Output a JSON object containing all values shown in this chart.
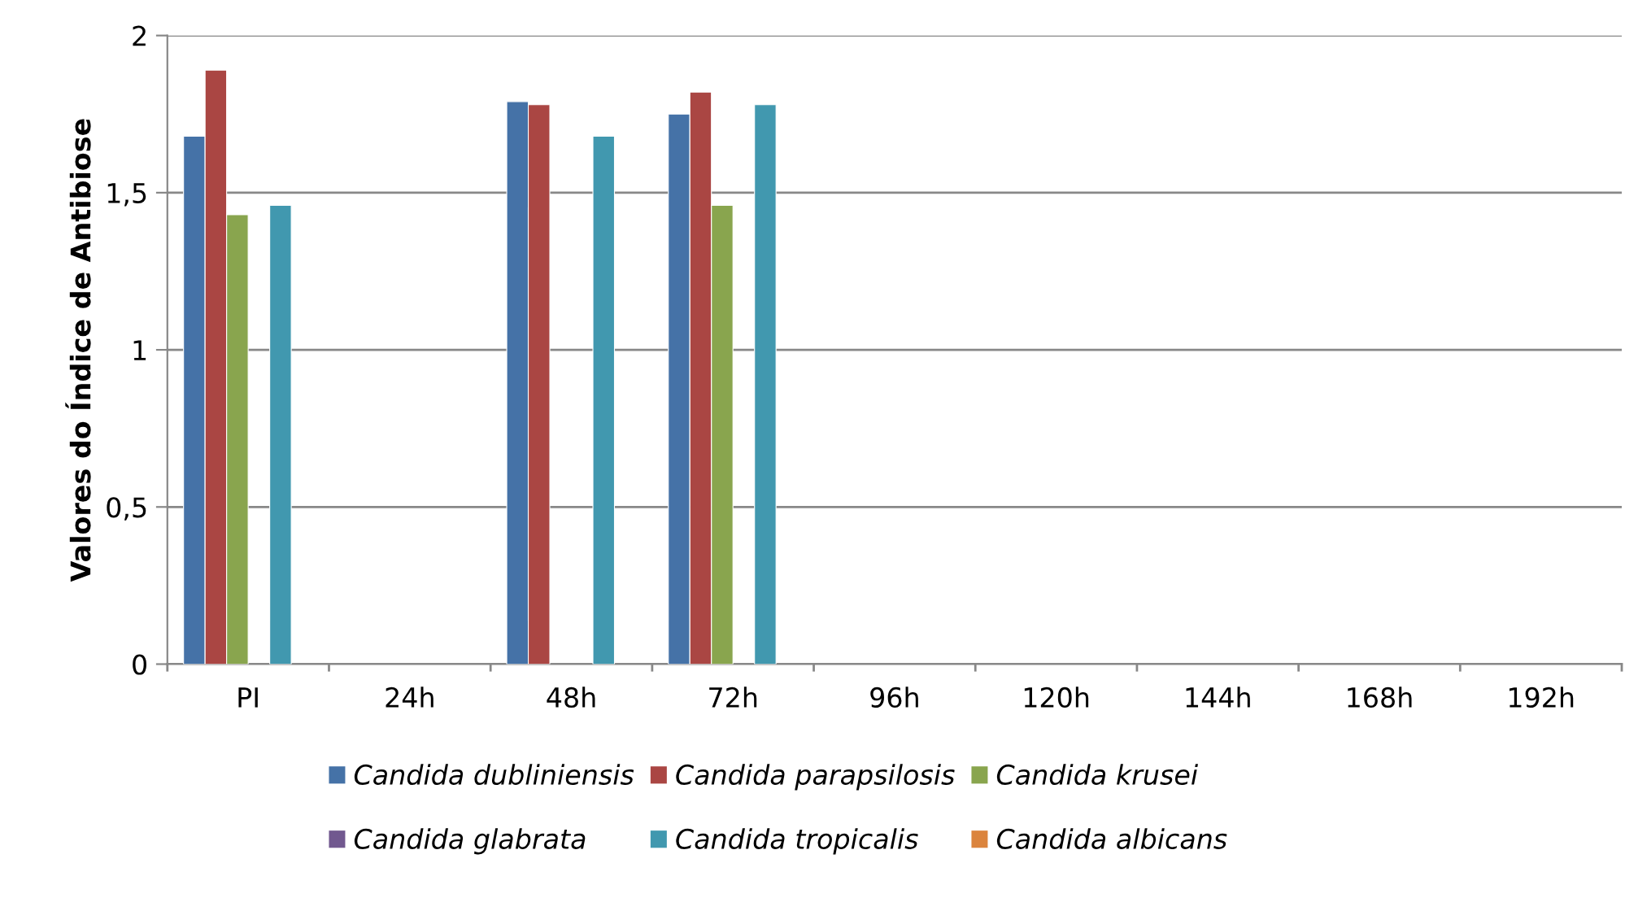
{
  "chart_data": {
    "type": "bar",
    "ylabel": "Valores do Índice de Antibiose",
    "categories": [
      "PI",
      "24h",
      "48h",
      "72h",
      "96h",
      "120h",
      "144h",
      "168h",
      "192h"
    ],
    "series": [
      {
        "name": "Candida dubliniensis",
        "color": "#4572a7",
        "values": [
          1.68,
          null,
          1.79,
          1.75,
          null,
          null,
          null,
          null,
          null
        ]
      },
      {
        "name": "Candida parapsilosis",
        "color": "#aa4643",
        "values": [
          1.89,
          null,
          1.78,
          1.82,
          null,
          null,
          null,
          null,
          null
        ]
      },
      {
        "name": "Candida krusei",
        "color": "#89a54e",
        "values": [
          1.43,
          null,
          null,
          1.46,
          null,
          null,
          null,
          null,
          null
        ]
      },
      {
        "name": "Candida glabrata",
        "color": "#71588f",
        "values": [
          null,
          null,
          null,
          null,
          null,
          null,
          null,
          null,
          null
        ]
      },
      {
        "name": "Candida tropicalis",
        "color": "#4198af",
        "values": [
          1.46,
          null,
          1.68,
          1.78,
          null,
          null,
          null,
          null,
          null
        ]
      },
      {
        "name": "Candida albicans",
        "color": "#db843d",
        "values": [
          null,
          null,
          null,
          null,
          null,
          null,
          null,
          null,
          null
        ]
      }
    ],
    "ylim": [
      0,
      2
    ],
    "yticks": [
      0,
      {
        "value": 0.5,
        "label": "0,5"
      },
      1,
      {
        "value": 1.5,
        "label": "1,5"
      },
      2
    ],
    "grid": "y",
    "legend": "bottom"
  }
}
